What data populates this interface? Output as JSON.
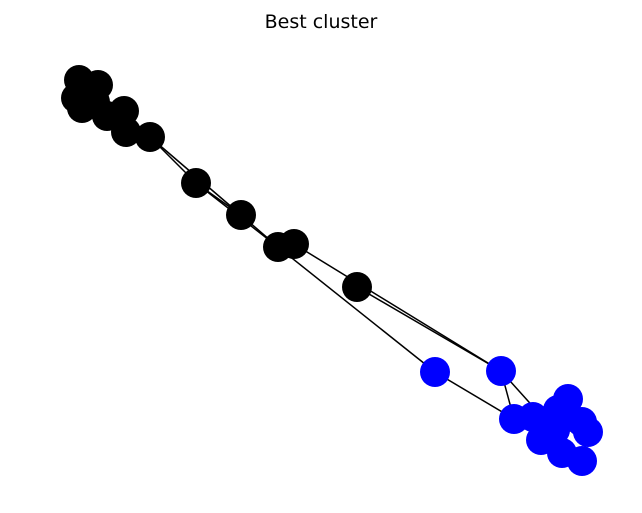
{
  "title": "Best cluster",
  "colors": {
    "background": "#ffffff",
    "edge": "#000000",
    "cluster_a": "#000000",
    "cluster_b": "#0000ff"
  },
  "graph": {
    "nodes": [
      {
        "id": "a1",
        "cluster": "cluster_a"
      },
      {
        "id": "a2",
        "cluster": "cluster_a"
      },
      {
        "id": "a3",
        "cluster": "cluster_a"
      },
      {
        "id": "a4",
        "cluster": "cluster_a"
      },
      {
        "id": "a5",
        "cluster": "cluster_a"
      },
      {
        "id": "a6",
        "cluster": "cluster_a"
      },
      {
        "id": "a7",
        "cluster": "cluster_a"
      },
      {
        "id": "a8",
        "cluster": "cluster_a"
      },
      {
        "id": "a9",
        "cluster": "cluster_a"
      },
      {
        "id": "a10",
        "cluster": "cluster_a"
      },
      {
        "id": "a11",
        "cluster": "cluster_a"
      },
      {
        "id": "a12",
        "cluster": "cluster_a"
      },
      {
        "id": "a13",
        "cluster": "cluster_a"
      },
      {
        "id": "a14",
        "cluster": "cluster_a"
      },
      {
        "id": "b1",
        "cluster": "cluster_b"
      },
      {
        "id": "b2",
        "cluster": "cluster_b"
      },
      {
        "id": "b3",
        "cluster": "cluster_b"
      },
      {
        "id": "b4",
        "cluster": "cluster_b"
      },
      {
        "id": "b5",
        "cluster": "cluster_b"
      },
      {
        "id": "b6",
        "cluster": "cluster_b"
      },
      {
        "id": "b7",
        "cluster": "cluster_b"
      },
      {
        "id": "b8",
        "cluster": "cluster_b"
      },
      {
        "id": "b9",
        "cluster": "cluster_b"
      },
      {
        "id": "b10",
        "cluster": "cluster_b"
      },
      {
        "id": "b11",
        "cluster": "cluster_b"
      },
      {
        "id": "b12",
        "cluster": "cluster_b"
      }
    ],
    "edges": [
      [
        "a1",
        "a4"
      ],
      [
        "a2",
        "a4"
      ],
      [
        "a3",
        "a4"
      ],
      [
        "a3",
        "a5"
      ],
      [
        "a4",
        "a6"
      ],
      [
        "a5",
        "a7"
      ],
      [
        "a6",
        "a8"
      ],
      [
        "a7",
        "a8"
      ],
      [
        "a8",
        "a9"
      ],
      [
        "a9",
        "a10"
      ],
      [
        "a9",
        "a11"
      ],
      [
        "a10",
        "a11"
      ],
      [
        "a10",
        "a12"
      ],
      [
        "a11",
        "a12"
      ],
      [
        "a12",
        "a13"
      ],
      [
        "a11",
        "b1"
      ],
      [
        "a12",
        "b2"
      ],
      [
        "b1",
        "b3"
      ],
      [
        "b2",
        "b3"
      ],
      [
        "b2",
        "b12"
      ],
      [
        "b3",
        "b4"
      ],
      [
        "b4",
        "b5"
      ],
      [
        "b5",
        "b6"
      ],
      [
        "b6",
        "b7"
      ],
      [
        "b5",
        "b8"
      ],
      [
        "b7",
        "b9"
      ],
      [
        "b8",
        "b10"
      ],
      [
        "b9",
        "b11"
      ],
      [
        "b10",
        "b12"
      ]
    ]
  }
}
